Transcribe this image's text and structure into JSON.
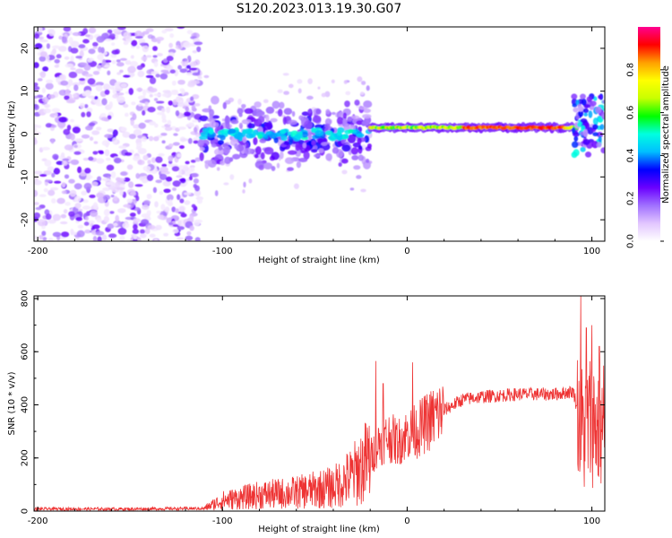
{
  "title": "S120.2023.013.19.30.G07",
  "chart_data": [
    {
      "type": "heatmap",
      "xlabel": "Height of straight line (km)",
      "ylabel": "Frequency (Hz)",
      "xlim": [
        -202,
        107
      ],
      "ylim": [
        -25,
        25
      ],
      "x_ticks": [
        -200,
        -100,
        0,
        100
      ],
      "y_ticks": [
        -20,
        -10,
        0,
        10,
        20
      ],
      "colorbar": {
        "label": "Normalized spectral amplitude",
        "range": [
          0,
          1
        ],
        "ticks": [
          "0.0",
          "0.2",
          "0.4",
          "0.6",
          "0.8"
        ],
        "tick_values": [
          0.0,
          0.2,
          0.4,
          0.6,
          0.8
        ],
        "colormap": [
          "#ffffff",
          "#e2c6ff",
          "#a070ff",
          "#6a00ff",
          "#0000ff",
          "#00bfff",
          "#00ffe0",
          "#00ff00",
          "#c8ff00",
          "#ffff00",
          "#ffa000",
          "#ff0000",
          "#ff0090"
        ]
      },
      "regions": [
        {
          "x": [
            -202,
            -112
          ],
          "freq_spread": 25,
          "amplitude": [
            0.02,
            0.25
          ],
          "description": "noise"
        },
        {
          "x": [
            -112,
            -20
          ],
          "freq_center": 0,
          "freq_spread": 6,
          "amplitude": [
            0.2,
            0.5
          ]
        },
        {
          "x": [
            -20,
            92
          ],
          "freq_center": 1.5,
          "freq_spread": 1,
          "amplitude": [
            0.5,
            1.0
          ]
        },
        {
          "x": [
            92,
            107
          ],
          "freq_center": 2,
          "freq_spread": 6,
          "amplitude": [
            0.3,
            0.7
          ]
        }
      ]
    },
    {
      "type": "line",
      "xlabel": "Height of straight line (km)",
      "ylabel": "SNR (10 * v/v)",
      "xlim": [
        -202,
        107
      ],
      "ylim": [
        0,
        810
      ],
      "x_ticks": [
        -200,
        -100,
        0,
        100
      ],
      "y_ticks": [
        0,
        200,
        400,
        600,
        800
      ],
      "color": "#ee3333",
      "series": [
        {
          "x": [
            -202,
            -150,
            -110,
            -100,
            -80,
            -60,
            -40,
            -30,
            -20,
            -15,
            -10,
            -5,
            0,
            5,
            10,
            20,
            30,
            40,
            60,
            80,
            90,
            95,
            100,
            105,
            107
          ],
          "y": [
            8,
            8,
            10,
            40,
            60,
            70,
            90,
            130,
            200,
            260,
            280,
            260,
            290,
            300,
            330,
            380,
            420,
            430,
            440,
            440,
            450,
            300,
            350,
            300,
            350
          ]
        }
      ],
      "spikes": [
        {
          "x": -17,
          "y": 565
        },
        {
          "x": -13,
          "y": 480
        },
        {
          "x": 3,
          "y": 560
        },
        {
          "x": 94,
          "y": 810
        },
        {
          "x": 97,
          "y": 690
        },
        {
          "x": 100,
          "y": 700
        },
        {
          "x": 104,
          "y": 620
        }
      ]
    }
  ]
}
